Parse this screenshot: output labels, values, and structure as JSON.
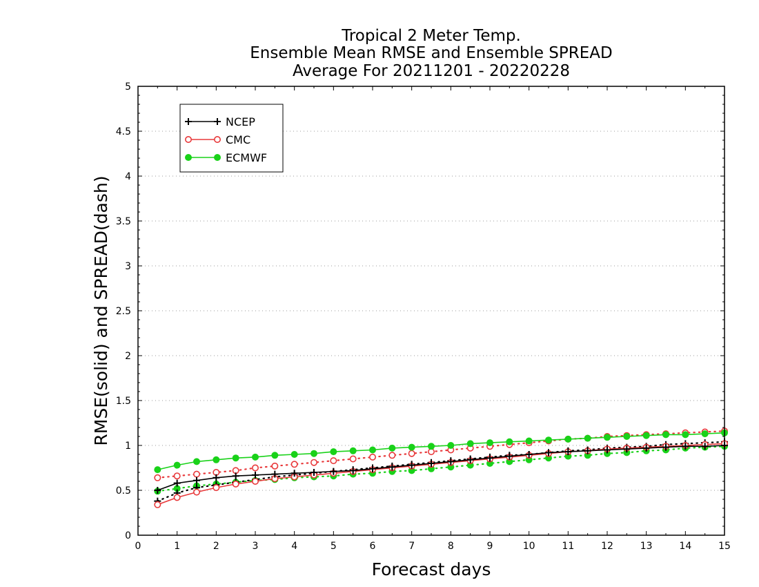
{
  "chart_data": {
    "type": "line",
    "title": [
      "Tropical 2 Meter Temp.",
      "Ensemble Mean RMSE and Ensemble SPREAD",
      "Average For 20211201 - 20220228"
    ],
    "xlabel": "Forecast days",
    "ylabel": "RMSE(solid) and SPREAD(dash)",
    "xlim": [
      0,
      15
    ],
    "ylim": [
      0,
      5
    ],
    "xticks": [
      0,
      1,
      2,
      3,
      4,
      5,
      6,
      7,
      8,
      9,
      10,
      11,
      12,
      13,
      14,
      15
    ],
    "yticks": [
      0,
      0.5,
      1,
      1.5,
      2,
      2.5,
      3,
      3.5,
      4,
      4.5,
      5
    ],
    "ytick_labels": [
      "0",
      "0.5",
      "1",
      "1.5",
      "2",
      "2.5",
      "3",
      "3.5",
      "4",
      "4.5",
      "5"
    ],
    "grid": "horizontal dotted",
    "legend_position": "top-left",
    "x": [
      0.5,
      1,
      1.5,
      2,
      2.5,
      3,
      3.5,
      4,
      4.5,
      5,
      5.5,
      6,
      6.5,
      7,
      7.5,
      8,
      8.5,
      9,
      9.5,
      10,
      10.5,
      11,
      11.5,
      12,
      12.5,
      13,
      13.5,
      14,
      14.5,
      15
    ],
    "series": [
      {
        "name": "NCEP",
        "metric": "rmse",
        "style": "solid",
        "marker": "plus",
        "color": "#000000",
        "values": [
          0.5,
          0.58,
          0.61,
          0.64,
          0.66,
          0.67,
          0.68,
          0.69,
          0.7,
          0.71,
          0.72,
          0.74,
          0.76,
          0.78,
          0.8,
          0.82,
          0.84,
          0.86,
          0.88,
          0.9,
          0.92,
          0.93,
          0.94,
          0.95,
          0.96,
          0.97,
          0.98,
          0.99,
          0.99,
          1.0
        ]
      },
      {
        "name": "NCEP",
        "metric": "spread",
        "style": "dotted",
        "marker": "plus",
        "color": "#000000",
        "values": [
          0.38,
          0.47,
          0.53,
          0.56,
          0.59,
          0.62,
          0.65,
          0.67,
          0.69,
          0.71,
          0.73,
          0.75,
          0.77,
          0.79,
          0.81,
          0.83,
          0.85,
          0.87,
          0.89,
          0.9,
          0.92,
          0.94,
          0.95,
          0.97,
          0.98,
          0.99,
          1.01,
          1.02,
          1.03,
          1.04
        ]
      },
      {
        "name": "CMC",
        "metric": "rmse",
        "style": "solid",
        "marker": "open-circle",
        "color": "#e8383a",
        "values": [
          0.34,
          0.42,
          0.48,
          0.53,
          0.57,
          0.6,
          0.63,
          0.65,
          0.67,
          0.69,
          0.71,
          0.73,
          0.75,
          0.77,
          0.79,
          0.81,
          0.83,
          0.85,
          0.87,
          0.89,
          0.91,
          0.93,
          0.94,
          0.96,
          0.97,
          0.98,
          0.99,
          1.0,
          1.01,
          1.02
        ]
      },
      {
        "name": "CMC",
        "metric": "spread",
        "style": "dotted",
        "marker": "open-circle",
        "color": "#e8383a",
        "values": [
          0.64,
          0.66,
          0.68,
          0.7,
          0.72,
          0.75,
          0.77,
          0.79,
          0.81,
          0.83,
          0.85,
          0.87,
          0.89,
          0.91,
          0.93,
          0.95,
          0.97,
          0.99,
          1.01,
          1.03,
          1.05,
          1.07,
          1.08,
          1.1,
          1.11,
          1.12,
          1.13,
          1.14,
          1.15,
          1.16
        ]
      },
      {
        "name": "ECMWF",
        "metric": "rmse",
        "style": "solid",
        "marker": "filled-circle",
        "color": "#19d219",
        "values": [
          0.73,
          0.78,
          0.82,
          0.84,
          0.86,
          0.87,
          0.89,
          0.9,
          0.91,
          0.93,
          0.94,
          0.95,
          0.97,
          0.98,
          0.99,
          1.0,
          1.02,
          1.03,
          1.04,
          1.05,
          1.06,
          1.07,
          1.08,
          1.09,
          1.1,
          1.11,
          1.12,
          1.12,
          1.13,
          1.14
        ]
      },
      {
        "name": "ECMWF",
        "metric": "spread",
        "style": "dotted",
        "marker": "filled-circle",
        "color": "#19d219",
        "values": [
          0.49,
          0.52,
          0.55,
          0.57,
          0.59,
          0.61,
          0.62,
          0.64,
          0.65,
          0.66,
          0.68,
          0.69,
          0.71,
          0.72,
          0.74,
          0.76,
          0.78,
          0.8,
          0.82,
          0.84,
          0.86,
          0.88,
          0.89,
          0.91,
          0.92,
          0.94,
          0.95,
          0.97,
          0.98,
          0.99
        ]
      }
    ],
    "legend": [
      {
        "label": "NCEP",
        "marker": "plus",
        "color": "#000000"
      },
      {
        "label": "CMC",
        "marker": "open-circle",
        "color": "#e8383a"
      },
      {
        "label": "ECMWF",
        "marker": "filled-circle",
        "color": "#19d219"
      }
    ]
  }
}
